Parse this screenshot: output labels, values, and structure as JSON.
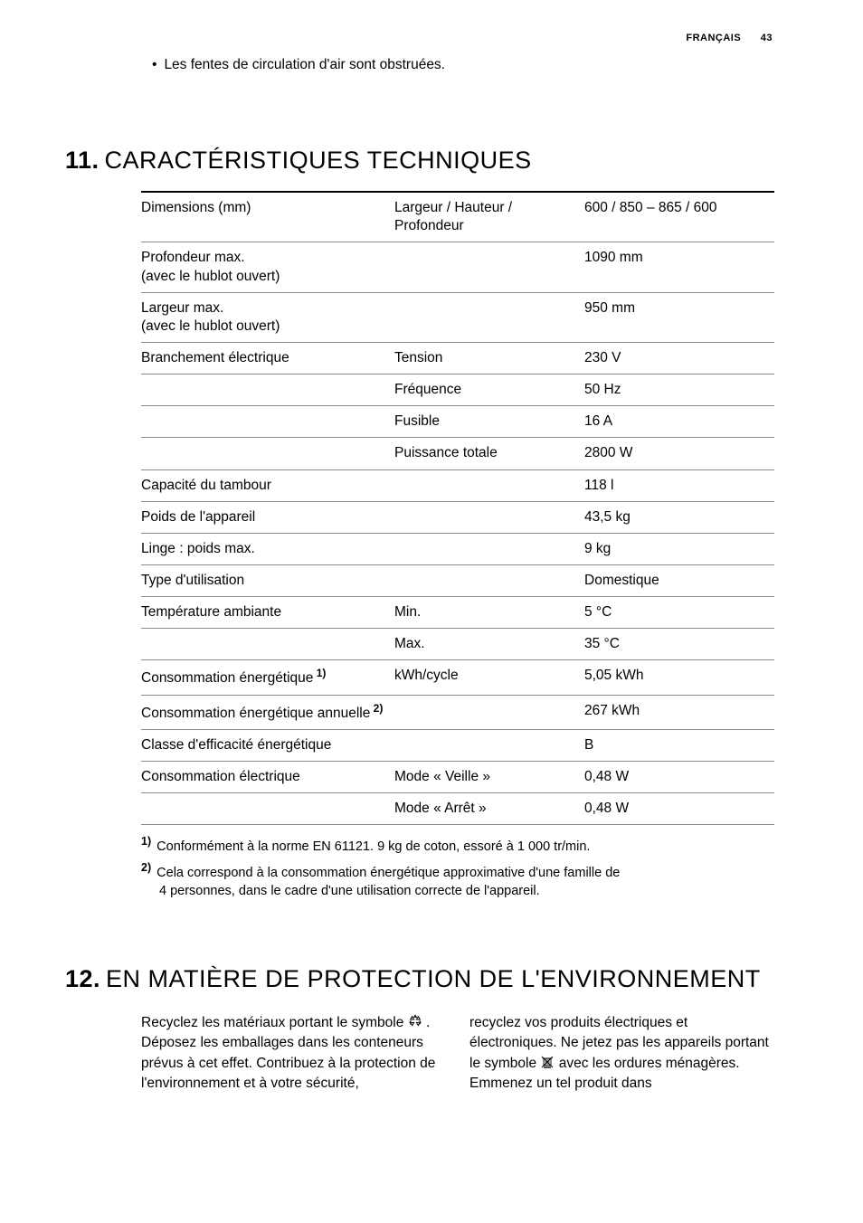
{
  "header": {
    "language": "FRANÇAIS",
    "page_number": "43"
  },
  "intro_bullet": "Les fentes de circulation d'air sont obstruées.",
  "section11": {
    "number": "11.",
    "title": "CARACTÉRISTIQUES TECHNIQUES",
    "rows": [
      {
        "c1": "Dimensions (mm)",
        "c2": "Largeur / Hauteur / Profondeur",
        "c3": "600 / 850 – 865 / 600"
      },
      {
        "c1": "Profondeur max.\n(avec le hublot ouvert)",
        "c2": "",
        "c3": "1090 mm"
      },
      {
        "c1": "Largeur max.\n(avec le hublot ouvert)",
        "c2": "",
        "c3": "950 mm"
      },
      {
        "c1": "Branchement électrique",
        "c2": "Tension",
        "c3": "230 V"
      },
      {
        "c1": "",
        "c2": "Fréquence",
        "c3": "50 Hz"
      },
      {
        "c1": "",
        "c2": "Fusible",
        "c3": "16 A"
      },
      {
        "c1": "",
        "c2": "Puissance totale",
        "c3": "2800 W"
      },
      {
        "c1": "Capacité du tambour",
        "c2": "",
        "c3": "118 l"
      },
      {
        "c1": "Poids de l'appareil",
        "c2": "",
        "c3": "43,5 kg"
      },
      {
        "c1": "Linge : poids max.",
        "c2": "",
        "c3": "9 kg"
      },
      {
        "c1": "Type d'utilisation",
        "c2": "",
        "c3": "Domestique"
      },
      {
        "c1": "Température ambiante",
        "c2": "Min.",
        "c3": "5 °C"
      },
      {
        "c1": "",
        "c2": "Max.",
        "c3": "35 °C"
      },
      {
        "c1": "Consommation énergétique",
        "c1_sup": "1)",
        "c2": "kWh/cycle",
        "c3": "5,05 kWh"
      },
      {
        "c1": "Consommation énergétique annuelle",
        "c1_sup": "2)",
        "c2": "",
        "c3": "267 kWh"
      },
      {
        "c1": "Classe d'efficacité énergétique",
        "c2": "",
        "c3": "B"
      },
      {
        "c1": "Consommation électrique",
        "c2": "Mode « Veille »",
        "c3": "0,48 W"
      },
      {
        "c1": "",
        "c2": "Mode « Arrêt »",
        "c3": "0,48 W"
      }
    ],
    "footnotes": [
      {
        "num": "1)",
        "text": "Conformément à la norme EN 61121. 9 kg de coton, essoré à 1 000 tr/min."
      },
      {
        "num": "2)",
        "text": "Cela correspond à la consommation énergétique approximative d'une famille de",
        "cont": "4 personnes, dans le cadre d'une utilisation correcte de l'appareil."
      }
    ]
  },
  "section12": {
    "number": "12.",
    "title": "EN MATIÈRE DE PROTECTION DE L'ENVIRONNEMENT",
    "col1_a": "Recyclez les matériaux portant le symbole",
    "col1_b": ". Déposez les emballages dans les conteneurs prévus à cet effet. Contribuez à la protection de l'environnement et à votre sécurité,",
    "col2_a": "recyclez vos produits électriques et électroniques. Ne jetez pas les appareils portant le symbole",
    "col2_b": "avec les ordures ménagères. Emmenez un tel produit dans"
  }
}
